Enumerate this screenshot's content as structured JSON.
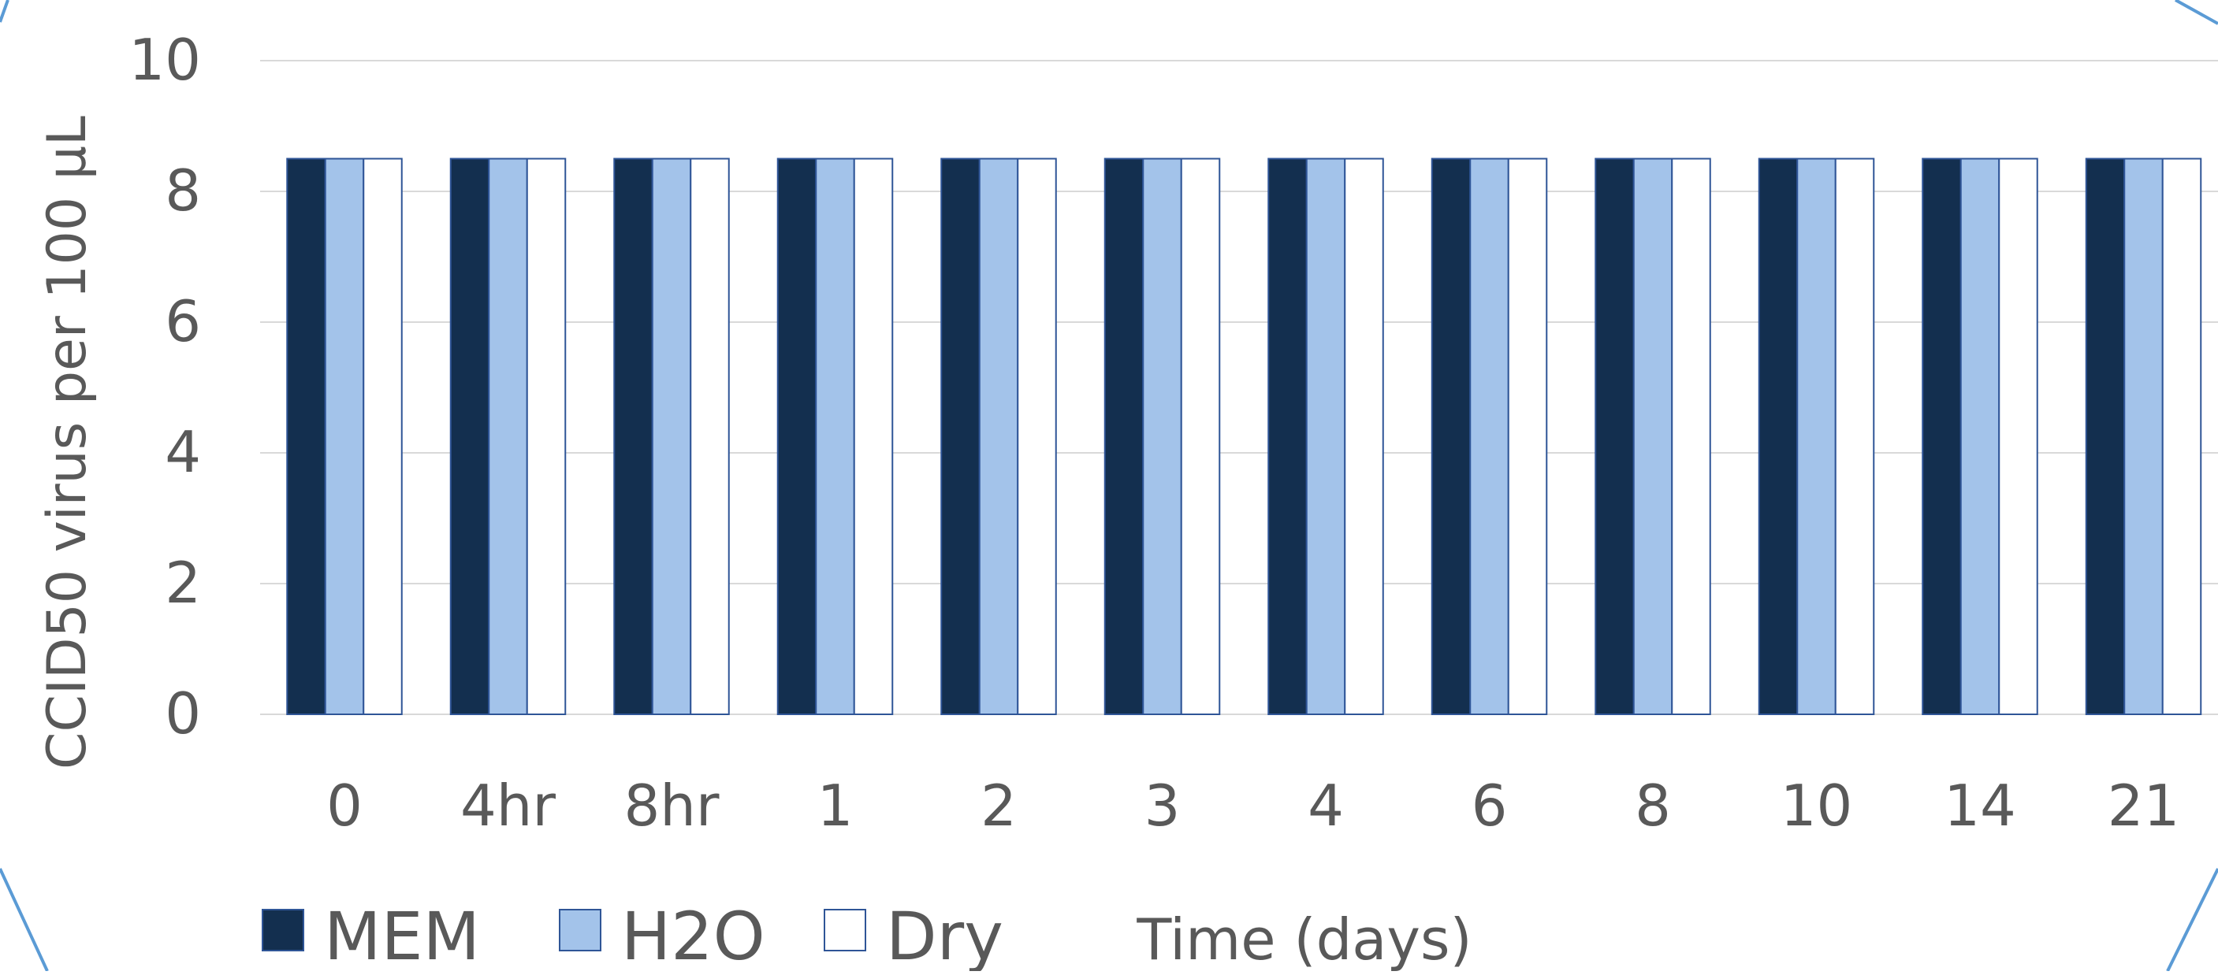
{
  "chart_data": {
    "type": "bar",
    "categories": [
      "0",
      "4hr",
      "8hr",
      "1",
      "2",
      "3",
      "4",
      "6",
      "8",
      "10",
      "14",
      "21"
    ],
    "series": [
      {
        "name": "MEM",
        "values": [
          8.5,
          8.5,
          8.5,
          8.5,
          8.5,
          8.5,
          8.5,
          8.5,
          8.5,
          8.5,
          8.5,
          8.5
        ],
        "color": "#132f4f",
        "stroke": "#2f5597"
      },
      {
        "name": "H2O",
        "values": [
          8.5,
          8.5,
          8.5,
          8.5,
          8.5,
          8.5,
          8.5,
          8.5,
          8.5,
          8.5,
          8.5,
          8.5
        ],
        "color": "#a3c3ea",
        "stroke": "#2f5597"
      },
      {
        "name": "Dry",
        "values": [
          8.5,
          8.5,
          8.5,
          8.5,
          8.5,
          8.5,
          8.5,
          8.5,
          8.5,
          8.5,
          8.5,
          8.5
        ],
        "color": "#ffffff",
        "stroke": "#2f5597"
      }
    ],
    "xlabel": "Time (days)",
    "ylabel": "CCID50 virus per 100 µL",
    "ylim": [
      0,
      10
    ],
    "yticks": [
      0,
      2,
      4,
      6,
      8,
      10
    ],
    "grid": true,
    "legend": "bottom-left",
    "frame_color": "#5b9bd5",
    "gridline_color": "#d9d9d9"
  }
}
